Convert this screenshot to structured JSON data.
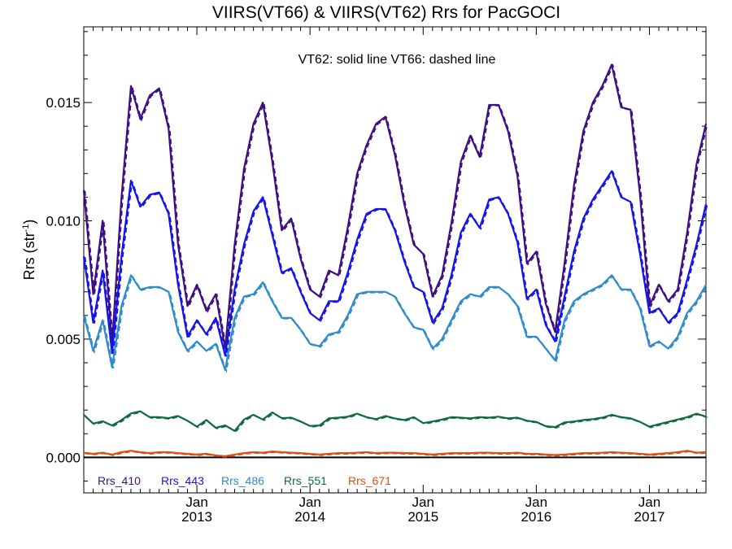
{
  "chart_data": {
    "type": "line",
    "title": "VIIRS(VT66) & VIIRS(VT62)  Rrs for PacGOCI",
    "annotation": "VT62: solid line   VT66: dashed line",
    "ylabel": "Rrs (str",
    "ylabel_exponent": "-1",
    "ylabel_close": ")",
    "ylim": [
      -0.0015,
      0.0182
    ],
    "xlim": [
      "2012-01",
      "2017-07"
    ],
    "yticks": [
      0.0,
      0.005,
      0.01,
      0.015
    ],
    "ytick_labels": [
      "0.000",
      "0.005",
      "0.010",
      "0.015"
    ],
    "xticks": [
      {
        "date": "2013-01",
        "month": "Jan",
        "year": "2013"
      },
      {
        "date": "2014-01",
        "month": "Jan",
        "year": "2014"
      },
      {
        "date": "2015-01",
        "month": "Jan",
        "year": "2015"
      },
      {
        "date": "2016-01",
        "month": "Jan",
        "year": "2016"
      },
      {
        "date": "2017-01",
        "month": "Jan",
        "year": "2017"
      }
    ],
    "zero_line": true,
    "grid": false,
    "legend_position": "bottom-left, inside plot",
    "line_styles": {
      "VT62": "solid",
      "VT66": "dashed"
    },
    "x": [
      "2012-01",
      "2012-02",
      "2012-03",
      "2012-04",
      "2012-05",
      "2012-06",
      "2012-07",
      "2012-08",
      "2012-09",
      "2012-10",
      "2012-11",
      "2012-12",
      "2013-01",
      "2013-02",
      "2013-03",
      "2013-04",
      "2013-05",
      "2013-06",
      "2013-07",
      "2013-08",
      "2013-09",
      "2013-10",
      "2013-11",
      "2013-12",
      "2014-01",
      "2014-02",
      "2014-03",
      "2014-04",
      "2014-05",
      "2014-06",
      "2014-07",
      "2014-08",
      "2014-09",
      "2014-10",
      "2014-11",
      "2014-12",
      "2015-01",
      "2015-02",
      "2015-03",
      "2015-04",
      "2015-05",
      "2015-06",
      "2015-07",
      "2015-08",
      "2015-09",
      "2015-10",
      "2015-11",
      "2015-12",
      "2016-01",
      "2016-02",
      "2016-03",
      "2016-04",
      "2016-05",
      "2016-06",
      "2016-07",
      "2016-08",
      "2016-09",
      "2016-10",
      "2016-11",
      "2016-12",
      "2017-01",
      "2017-02",
      "2017-03",
      "2017-04",
      "2017-05",
      "2017-06",
      "2017-07"
    ],
    "series": [
      {
        "name": "Rrs_410",
        "color": "#3d0f80",
        "values": [
          0.0113,
          0.0069,
          0.01,
          0.0048,
          0.011,
          0.0157,
          0.0143,
          0.0153,
          0.0156,
          0.0139,
          0.009,
          0.0064,
          0.0073,
          0.0062,
          0.0069,
          0.0046,
          0.009,
          0.0122,
          0.0141,
          0.015,
          0.0125,
          0.0096,
          0.0101,
          0.0084,
          0.0071,
          0.0068,
          0.0079,
          0.0077,
          0.0097,
          0.012,
          0.0132,
          0.0141,
          0.0144,
          0.0128,
          0.0107,
          0.009,
          0.0086,
          0.0068,
          0.0077,
          0.0099,
          0.0125,
          0.0136,
          0.0127,
          0.0149,
          0.0149,
          0.0138,
          0.0119,
          0.0082,
          0.0087,
          0.0065,
          0.0053,
          0.0082,
          0.0115,
          0.0138,
          0.015,
          0.0157,
          0.0166,
          0.0148,
          0.0147,
          0.0111,
          0.0064,
          0.0073,
          0.0066,
          0.0071,
          0.0095,
          0.0124,
          0.0141
        ]
      },
      {
        "name": "Rrs_443",
        "color": "#1414e6",
        "values": [
          0.0085,
          0.0057,
          0.0079,
          0.0044,
          0.0085,
          0.0117,
          0.0106,
          0.0111,
          0.0112,
          0.0103,
          0.0073,
          0.0051,
          0.0058,
          0.0052,
          0.0059,
          0.0043,
          0.0071,
          0.009,
          0.0104,
          0.011,
          0.0094,
          0.0078,
          0.008,
          0.007,
          0.0061,
          0.0058,
          0.0066,
          0.0066,
          0.0078,
          0.0092,
          0.0103,
          0.0105,
          0.0105,
          0.0096,
          0.0083,
          0.0072,
          0.007,
          0.0057,
          0.0063,
          0.0077,
          0.0095,
          0.0103,
          0.0097,
          0.0109,
          0.011,
          0.0103,
          0.0091,
          0.0067,
          0.0071,
          0.0056,
          0.0049,
          0.0068,
          0.0087,
          0.0101,
          0.0109,
          0.0115,
          0.0121,
          0.011,
          0.0108,
          0.0086,
          0.0061,
          0.0063,
          0.0057,
          0.0061,
          0.0075,
          0.009,
          0.0107
        ]
      },
      {
        "name": "Rrs_486",
        "color": "#2e8bcc",
        "values": [
          0.006,
          0.0045,
          0.0058,
          0.0038,
          0.0064,
          0.0077,
          0.0071,
          0.0072,
          0.0072,
          0.007,
          0.0053,
          0.0045,
          0.0049,
          0.0045,
          0.0048,
          0.0037,
          0.0059,
          0.0068,
          0.0069,
          0.0074,
          0.0066,
          0.0059,
          0.0059,
          0.0054,
          0.0048,
          0.0047,
          0.0052,
          0.0053,
          0.006,
          0.0069,
          0.007,
          0.007,
          0.007,
          0.0068,
          0.0061,
          0.0055,
          0.0054,
          0.0046,
          0.005,
          0.0058,
          0.0066,
          0.0069,
          0.0068,
          0.0072,
          0.0072,
          0.0069,
          0.0064,
          0.0051,
          0.0051,
          0.0046,
          0.0041,
          0.0058,
          0.0066,
          0.0069,
          0.0071,
          0.0073,
          0.0077,
          0.0071,
          0.0071,
          0.0063,
          0.0047,
          0.0049,
          0.0046,
          0.0051,
          0.0061,
          0.0066,
          0.0073
        ]
      },
      {
        "name": "Rrs_551",
        "color": "#0f6b3d",
        "values": [
          0.0018,
          0.00143,
          0.00153,
          0.00135,
          0.00158,
          0.00186,
          0.00195,
          0.0017,
          0.0017,
          0.00166,
          0.00175,
          0.00155,
          0.0013,
          0.00158,
          0.00125,
          0.00135,
          0.00112,
          0.0016,
          0.0018,
          0.0016,
          0.0019,
          0.00166,
          0.00168,
          0.00152,
          0.00133,
          0.00135,
          0.00165,
          0.00168,
          0.00172,
          0.00185,
          0.0017,
          0.00162,
          0.00175,
          0.00165,
          0.00158,
          0.0017,
          0.00145,
          0.00152,
          0.0016,
          0.0017,
          0.00168,
          0.00165,
          0.0017,
          0.00168,
          0.00172,
          0.00165,
          0.00168,
          0.00155,
          0.0015,
          0.00132,
          0.00128,
          0.00148,
          0.00152,
          0.00158,
          0.00162,
          0.00168,
          0.0018,
          0.0017,
          0.00165,
          0.0015,
          0.0013,
          0.0014,
          0.0015,
          0.0016,
          0.0017,
          0.00185,
          0.00172
        ]
      },
      {
        "name": "Rrs_671",
        "color": "#d94f14",
        "values": [
          0.0002,
          0.00015,
          0.0002,
          0.00012,
          0.00022,
          0.00028,
          0.00022,
          0.00018,
          0.00022,
          0.00022,
          0.00018,
          0.00015,
          0.00012,
          0.00015,
          8e-05,
          5e-05,
          0.00012,
          0.00018,
          0.00022,
          0.0002,
          0.00025,
          0.00022,
          0.0002,
          0.00018,
          0.00015,
          0.00012,
          0.00015,
          0.00018,
          0.00018,
          0.0002,
          0.00022,
          0.00018,
          0.0002,
          0.0002,
          0.00018,
          0.00018,
          0.00015,
          0.00012,
          0.00015,
          0.00018,
          0.00018,
          0.00018,
          0.0002,
          0.0002,
          0.00018,
          0.00018,
          0.0002,
          0.00015,
          0.00015,
          0.00012,
          0.0001,
          0.00012,
          0.00015,
          0.00018,
          0.00018,
          0.0002,
          0.00022,
          0.0002,
          0.00018,
          0.00015,
          0.00012,
          0.00015,
          0.00018,
          0.00022,
          0.00028,
          0.0002,
          0.00022
        ]
      }
    ]
  }
}
